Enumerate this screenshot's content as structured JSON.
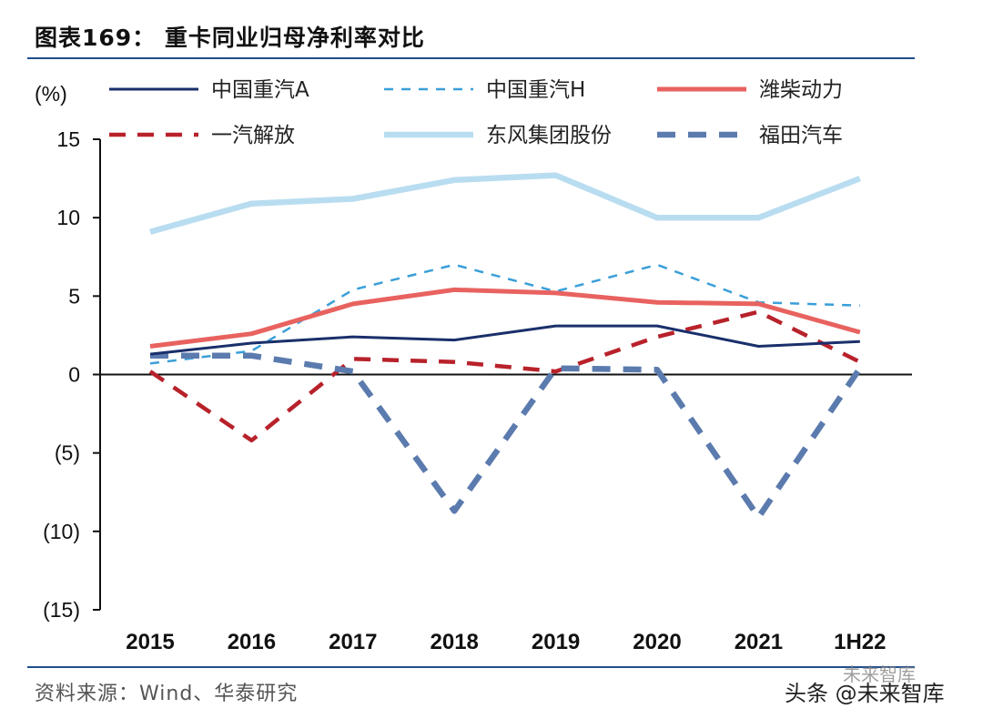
{
  "title": "图表169： 重卡同业归母净利率对比",
  "source": "资料来源：Wind、华泰研究",
  "watermark": "头条 @未来智库",
  "watermark_faint": "未来智库",
  "chart_data": {
    "type": "line",
    "title": "图表169： 重卡同业归母净利率对比",
    "ylabel": "(%)",
    "xlabel": "",
    "ylim": [
      -15,
      15
    ],
    "yticks": [
      15,
      10,
      5,
      0,
      -5,
      -10,
      -15
    ],
    "ytick_labels": [
      "15",
      "10",
      "5",
      "0",
      "(5)",
      "(10)",
      "(15)"
    ],
    "categories": [
      "2015",
      "2016",
      "2017",
      "2018",
      "2019",
      "2020",
      "2021",
      "1H22"
    ],
    "legend_position": "top",
    "series": [
      {
        "name": "中国重汽A",
        "color": "#1a2f6b",
        "style": "solid",
        "width": 3,
        "values": [
          1.3,
          2.0,
          2.4,
          2.2,
          3.1,
          3.1,
          1.8,
          2.1
        ]
      },
      {
        "name": "中国重汽H",
        "color": "#3a9fd8",
        "style": "dashed-thin",
        "width": 2.5,
        "values": [
          0.7,
          1.5,
          5.4,
          7.0,
          5.3,
          7.0,
          4.6,
          4.4
        ]
      },
      {
        "name": "潍柴动力",
        "color": "#e8625f",
        "style": "solid",
        "width": 5,
        "values": [
          1.8,
          2.6,
          4.5,
          5.4,
          5.2,
          4.6,
          4.5,
          2.7
        ]
      },
      {
        "name": "一汽解放",
        "color": "#b8222b",
        "style": "dashed",
        "width": 4.5,
        "values": [
          0.2,
          -4.2,
          1.0,
          0.8,
          0.2,
          2.4,
          4.0,
          0.8
        ]
      },
      {
        "name": "东风集团股份",
        "color": "#b9ddf0",
        "style": "solid",
        "width": 6.5,
        "values": [
          9.1,
          10.9,
          11.2,
          12.4,
          12.7,
          10.0,
          10.0,
          12.5
        ]
      },
      {
        "name": "福田汽车",
        "color": "#5b7bae",
        "style": "dashed",
        "width": 6.5,
        "values": [
          1.2,
          1.2,
          0.2,
          -8.7,
          0.4,
          0.3,
          -9.1,
          0.4
        ]
      }
    ]
  }
}
